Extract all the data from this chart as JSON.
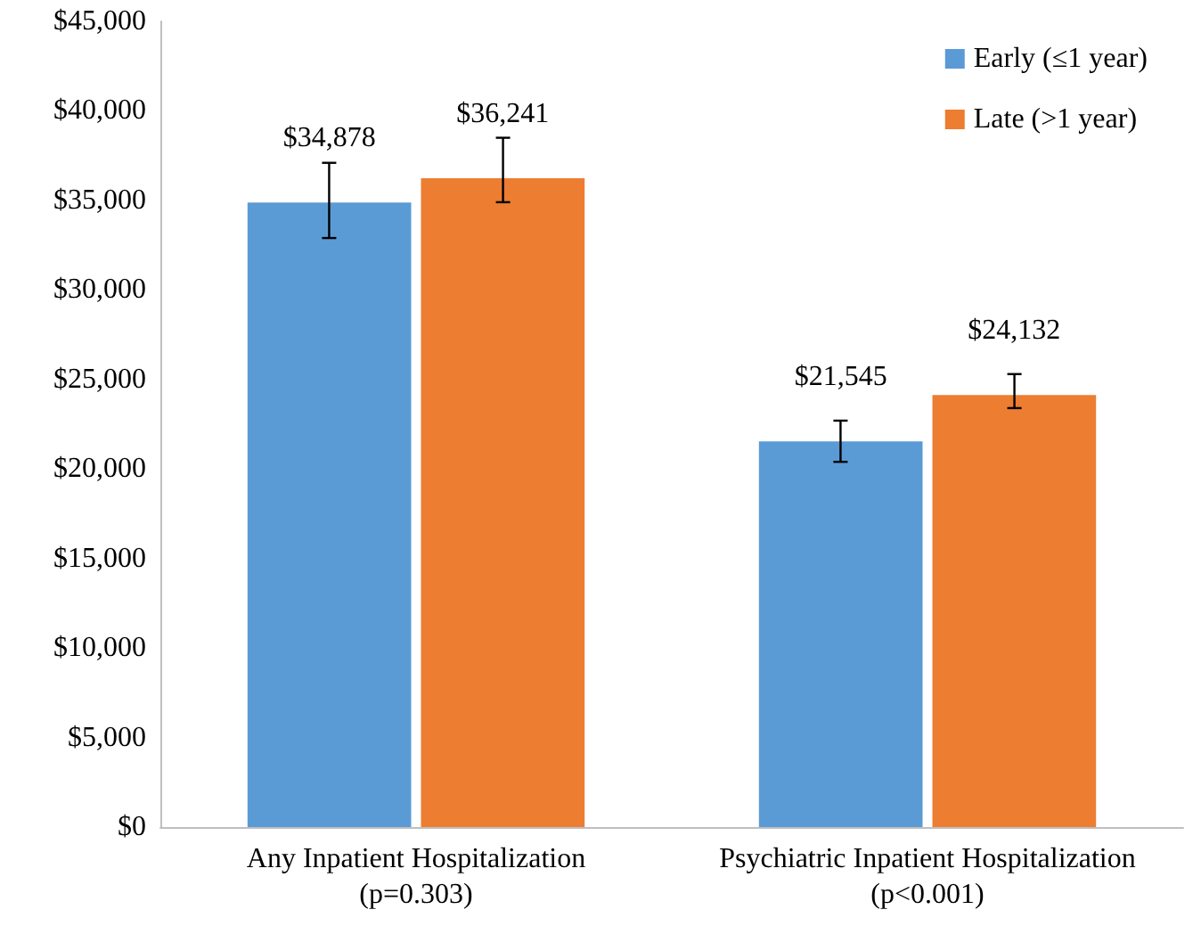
{
  "chart_data": {
    "type": "bar",
    "categories": [
      "Any Inpatient Hospitalization\n(p=0.303)",
      "Psychiatric Inpatient Hospitalization\n(p<0.001)"
    ],
    "series": [
      {
        "name": "Early (≤1 year)",
        "color": "#5b9bd5",
        "values": [
          34878,
          21545
        ],
        "errors": [
          [
            32900,
            37100
          ],
          [
            20400,
            22700
          ]
        ],
        "value_labels": [
          "$34,878",
          "$21,545"
        ]
      },
      {
        "name": "Late (>1 year)",
        "color": "#ed7d31",
        "values": [
          36241,
          24132
        ],
        "errors": [
          [
            34900,
            38500
          ],
          [
            23400,
            25300
          ]
        ],
        "value_labels": [
          "$36,241",
          "$24,132"
        ]
      }
    ],
    "ylim": [
      0,
      45000
    ],
    "yticks": [
      {
        "value": 0,
        "label": "$0"
      },
      {
        "value": 5000,
        "label": "$5,000"
      },
      {
        "value": 10000,
        "label": "$10,000"
      },
      {
        "value": 15000,
        "label": "$15,000"
      },
      {
        "value": 20000,
        "label": "$20,000"
      },
      {
        "value": 25000,
        "label": "$25,000"
      },
      {
        "value": 30000,
        "label": "$30,000"
      },
      {
        "value": 35000,
        "label": "$35,000"
      },
      {
        "value": 40000,
        "label": "$40,000"
      },
      {
        "value": 45000,
        "label": "$45,000"
      }
    ],
    "grid": false,
    "legend": "top right"
  }
}
